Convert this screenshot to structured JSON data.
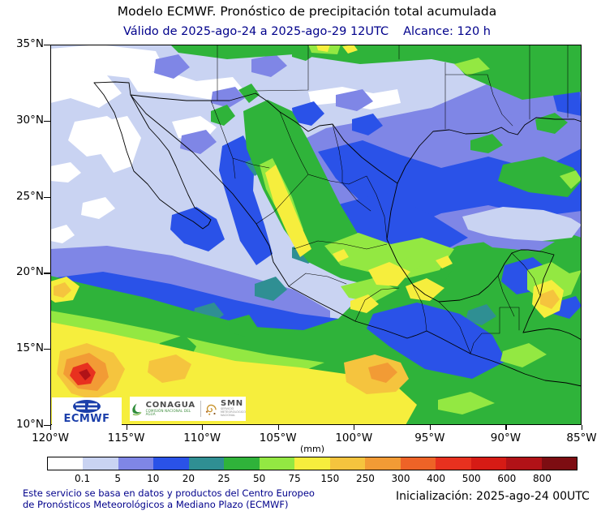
{
  "header": {
    "title": "Modelo ECMWF. Pronóstico de precipitación total acumulada",
    "subtitle_valid": "Válido de 2025-ago-24 a 2025-ago-29 12UTC",
    "subtitle_reach": "Alcance: 120 h"
  },
  "map": {
    "x_tick_labels": [
      "120°W",
      "115°W",
      "110°W",
      "105°W",
      "100°W",
      "95°W",
      "90°W",
      "85°W"
    ],
    "y_tick_labels": [
      "35°N",
      "30°N",
      "25°N",
      "20°N",
      "15°N",
      "10°N"
    ]
  },
  "logos": {
    "ecmwf": "ECMWF",
    "conagua": "CONAGUA",
    "conagua_sub": "COMISIÓN NACIONAL DEL AGUA",
    "smn": "SMN",
    "smn_sub1": "SERVICIO",
    "smn_sub2": "METEOROLÓGICO",
    "smn_sub3": "NACIONAL"
  },
  "colorbar": {
    "unit_label": "(mm)",
    "tick_labels": [
      "0.1",
      "5",
      "10",
      "20",
      "25",
      "50",
      "75",
      "150",
      "250",
      "300",
      "400",
      "500",
      "600",
      "800"
    ],
    "colors": [
      "#ffffff",
      "#c9d3f2",
      "#7f86e6",
      "#2a52e8",
      "#2f8f93",
      "#2fb33a",
      "#93e842",
      "#f6ee3d",
      "#f5c43e",
      "#f29b35",
      "#ee6327",
      "#e8311f",
      "#d61b15",
      "#b11217",
      "#7d0d12"
    ]
  },
  "footer": {
    "source_line1": "Este servicio se basa en datos y productos del Centro Europeo",
    "source_line2": "de Pronósticos Meteorológicos a Mediano Plazo (ECMWF)",
    "initialization": "Inicialización: 2025-ago-24 00UTC"
  },
  "theme": {
    "subtitle_color": "#00008b",
    "footer_source_color": "#00008b",
    "frame_color": "#000000"
  }
}
